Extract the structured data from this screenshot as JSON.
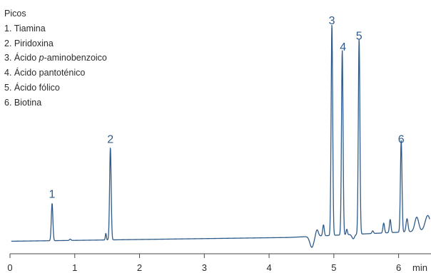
{
  "chart_data": {
    "type": "line",
    "legend_title": "Picos",
    "legend_items": [
      {
        "num": "1.",
        "pre": "Tiamina",
        "ital": "",
        "post": ""
      },
      {
        "num": "2.",
        "pre": "Piridoxina",
        "ital": "",
        "post": ""
      },
      {
        "num": "3.",
        "pre": "Ácido ",
        "ital": "p",
        "post": "-aminobenzoico"
      },
      {
        "num": "4.",
        "pre": "Ácido pantoténico",
        "ital": "",
        "post": ""
      },
      {
        "num": "5.",
        "pre": "Ácido fólico",
        "ital": "",
        "post": ""
      },
      {
        "num": "6.",
        "pre": "Biotina",
        "ital": "",
        "post": ""
      }
    ],
    "xlabel": "min",
    "xlim": [
      0,
      6.5
    ],
    "xticks": [
      0,
      1,
      2,
      3,
      4,
      5,
      6
    ],
    "xtick_labels": [
      "0",
      "1",
      "2",
      "3",
      "4",
      "5",
      "6"
    ],
    "ylim": [
      -0.05,
      1.0
    ],
    "baseline": 0.0,
    "peaks": [
      {
        "label": "1",
        "time": 0.65,
        "height": 0.19
      },
      {
        "label": "2",
        "time": 1.55,
        "height": 0.44
      },
      {
        "label": "3",
        "time": 4.97,
        "height": 0.98
      },
      {
        "label": "4",
        "time": 5.13,
        "height": 0.86
      },
      {
        "label": "5",
        "time": 5.39,
        "height": 0.91
      },
      {
        "label": "6",
        "time": 6.04,
        "height": 0.44
      }
    ],
    "line_color": "#2e5b8a",
    "label_color": "#2e5b8a",
    "grid": false
  }
}
